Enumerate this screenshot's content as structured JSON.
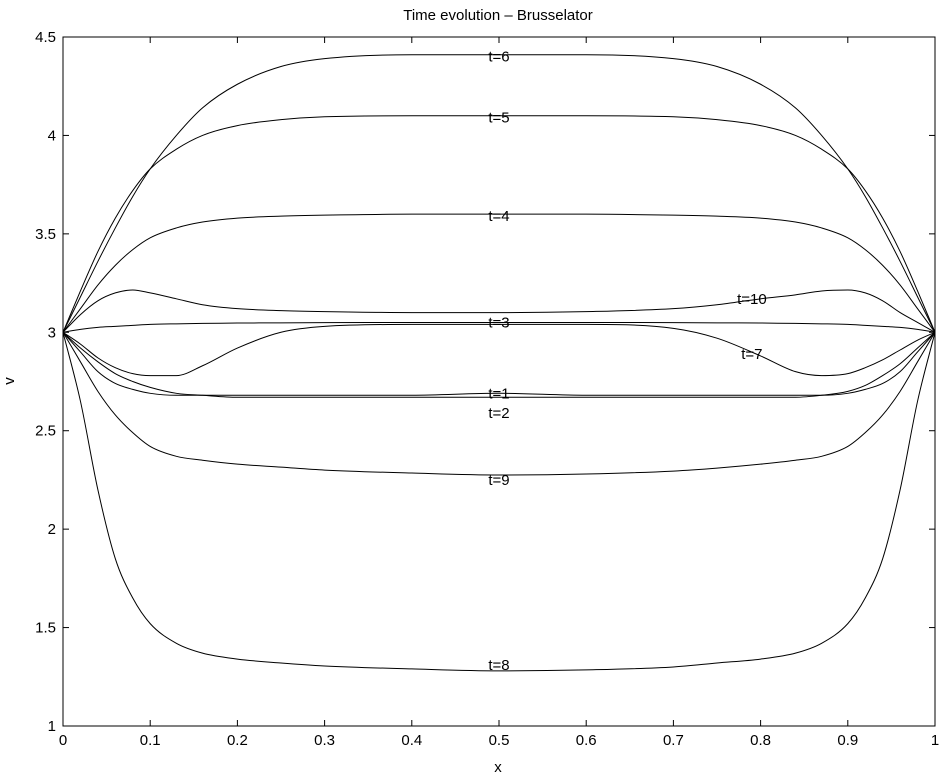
{
  "chart_data": {
    "type": "line",
    "title": "Time evolution – Brusselator",
    "xlabel": "x",
    "ylabel": "v",
    "xlim": [
      0,
      1
    ],
    "ylim": [
      1,
      4.5
    ],
    "grid": false,
    "legend": "none",
    "line_color": "#000000",
    "x_ticks": [
      {
        "value": 0,
        "label": "0"
      },
      {
        "value": 0.1,
        "label": "0.1"
      },
      {
        "value": 0.2,
        "label": "0.2"
      },
      {
        "value": 0.3,
        "label": "0.3"
      },
      {
        "value": 0.4,
        "label": "0.4"
      },
      {
        "value": 0.5,
        "label": "0.5"
      },
      {
        "value": 0.6,
        "label": "0.6"
      },
      {
        "value": 0.7,
        "label": "0.7"
      },
      {
        "value": 0.8,
        "label": "0.8"
      },
      {
        "value": 0.9,
        "label": "0.9"
      },
      {
        "value": 1,
        "label": "1"
      }
    ],
    "y_ticks": [
      {
        "value": 1,
        "label": "1"
      },
      {
        "value": 1.5,
        "label": "1.5"
      },
      {
        "value": 2,
        "label": "2"
      },
      {
        "value": 2.5,
        "label": "2.5"
      },
      {
        "value": 3,
        "label": "3"
      },
      {
        "value": 3.5,
        "label": "3.5"
      },
      {
        "value": 4,
        "label": "4"
      },
      {
        "value": 4.5,
        "label": "4.5"
      }
    ],
    "x": [
      0,
      0.02,
      0.04,
      0.06,
      0.08,
      0.1,
      0.13,
      0.16,
      0.2,
      0.25,
      0.3,
      0.4,
      0.5,
      0.6,
      0.7,
      0.75,
      0.8,
      0.84,
      0.87,
      0.9,
      0.92,
      0.94,
      0.96,
      0.98,
      1
    ],
    "series": [
      {
        "label": "t=1",
        "label_at": [
          0.5,
          2.69
        ],
        "values": [
          3.0,
          2.9,
          2.8,
          2.74,
          2.71,
          2.69,
          2.68,
          2.68,
          2.68,
          2.68,
          2.68,
          2.68,
          2.69,
          2.68,
          2.68,
          2.68,
          2.68,
          2.68,
          2.68,
          2.69,
          2.71,
          2.74,
          2.8,
          2.9,
          3.0
        ]
      },
      {
        "label": "t=2",
        "label_at": [
          0.5,
          2.59
        ],
        "values": [
          3.0,
          2.92,
          2.85,
          2.79,
          2.75,
          2.72,
          2.69,
          2.68,
          2.67,
          2.67,
          2.67,
          2.67,
          2.67,
          2.67,
          2.67,
          2.67,
          2.67,
          2.67,
          2.68,
          2.7,
          2.73,
          2.78,
          2.84,
          2.92,
          3.0
        ]
      },
      {
        "label": "t=3",
        "label_at": [
          0.5,
          3.05
        ],
        "values": [
          3.0,
          3.015,
          3.025,
          3.03,
          3.035,
          3.04,
          3.043,
          3.045,
          3.047,
          3.048,
          3.049,
          3.05,
          3.05,
          3.05,
          3.049,
          3.048,
          3.047,
          3.045,
          3.043,
          3.04,
          3.035,
          3.03,
          3.025,
          3.015,
          3.0
        ]
      },
      {
        "label": "t=4",
        "label_at": [
          0.5,
          3.59
        ],
        "values": [
          3.0,
          3.12,
          3.24,
          3.34,
          3.42,
          3.48,
          3.53,
          3.56,
          3.58,
          3.59,
          3.595,
          3.6,
          3.6,
          3.6,
          3.595,
          3.59,
          3.58,
          3.56,
          3.53,
          3.48,
          3.42,
          3.34,
          3.24,
          3.12,
          3.0
        ]
      },
      {
        "label": "t=5",
        "label_at": [
          0.5,
          4.09
        ],
        "values": [
          3.0,
          3.21,
          3.41,
          3.58,
          3.72,
          3.83,
          3.93,
          4.0,
          4.05,
          4.08,
          4.095,
          4.1,
          4.1,
          4.1,
          4.095,
          4.08,
          4.05,
          4.0,
          3.93,
          3.83,
          3.72,
          3.58,
          3.41,
          3.21,
          3.0
        ]
      },
      {
        "label": "t=6",
        "label_at": [
          0.5,
          4.4
        ],
        "values": [
          3.0,
          3.18,
          3.36,
          3.53,
          3.69,
          3.83,
          4.0,
          4.14,
          4.26,
          4.35,
          4.39,
          4.41,
          4.41,
          4.41,
          4.39,
          4.35,
          4.26,
          4.14,
          4.0,
          3.83,
          3.69,
          3.53,
          3.36,
          3.18,
          3.0
        ]
      },
      {
        "label": "t=7",
        "label_at": [
          0.79,
          2.89
        ],
        "values": [
          3.0,
          2.94,
          2.87,
          2.82,
          2.79,
          2.78,
          2.78,
          2.83,
          2.92,
          3.0,
          3.03,
          3.04,
          3.04,
          3.04,
          3.02,
          2.97,
          2.88,
          2.8,
          2.78,
          2.79,
          2.82,
          2.86,
          2.91,
          2.96,
          3.0
        ]
      },
      {
        "label": "t=8",
        "label_at": [
          0.5,
          1.31
        ],
        "values": [
          3.0,
          2.65,
          2.2,
          1.85,
          1.65,
          1.52,
          1.42,
          1.37,
          1.34,
          1.32,
          1.305,
          1.29,
          1.28,
          1.285,
          1.3,
          1.32,
          1.34,
          1.37,
          1.42,
          1.52,
          1.65,
          1.85,
          2.2,
          2.65,
          3.0
        ]
      },
      {
        "label": "t=9",
        "label_at": [
          0.5,
          2.25
        ],
        "values": [
          3.0,
          2.85,
          2.7,
          2.58,
          2.49,
          2.42,
          2.37,
          2.35,
          2.33,
          2.315,
          2.3,
          2.285,
          2.275,
          2.28,
          2.295,
          2.31,
          2.33,
          2.35,
          2.37,
          2.42,
          2.49,
          2.58,
          2.7,
          2.85,
          3.0
        ]
      },
      {
        "label": "t=10",
        "label_at": [
          0.79,
          3.17
        ],
        "values": [
          3.0,
          3.09,
          3.16,
          3.2,
          3.215,
          3.2,
          3.17,
          3.14,
          3.12,
          3.11,
          3.105,
          3.1,
          3.1,
          3.105,
          3.12,
          3.14,
          3.17,
          3.19,
          3.21,
          3.215,
          3.2,
          3.16,
          3.1,
          3.05,
          3.0
        ]
      }
    ]
  }
}
